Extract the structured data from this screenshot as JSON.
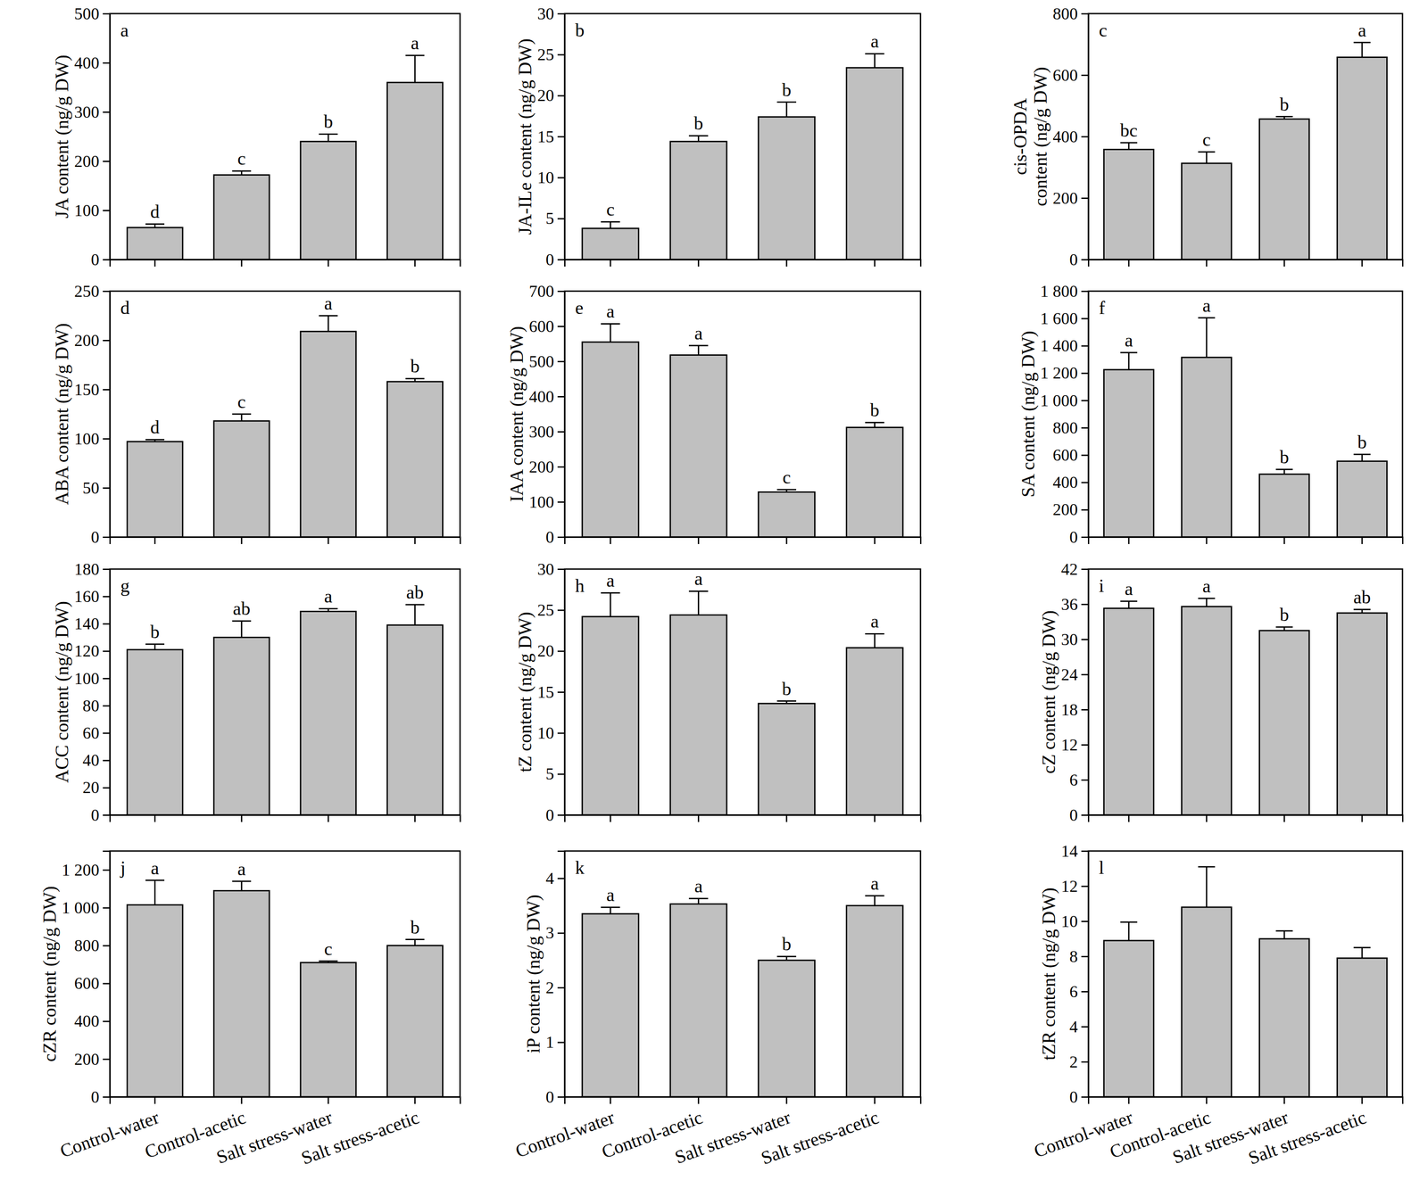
{
  "chart_data": [
    {
      "type": "bar",
      "title": "a",
      "y_label": "JA content (ng/g DW)",
      "categories": [
        "Control-water",
        "Control-acetic",
        "Salt stress-water",
        "Salt stress-acetic"
      ],
      "values": [
        65,
        172,
        240,
        360
      ],
      "errors": [
        7,
        8,
        15,
        55
      ],
      "annotations": [
        "d",
        "c",
        "b",
        "a"
      ],
      "color": "#c0c0c0",
      "ylim": [
        0,
        500
      ],
      "yticks": [
        0,
        100,
        200,
        300,
        400,
        500
      ],
      "tick_labels": "y"
    },
    {
      "type": "bar",
      "title": "b",
      "y_label": "JA-ILe content (ng/g DW)",
      "categories": [
        "Control-water",
        "Control-acetic",
        "Salt stress-water",
        "Salt stress-acetic"
      ],
      "values": [
        3.8,
        14.4,
        17.4,
        23.4
      ],
      "errors": [
        0.8,
        0.7,
        1.8,
        1.7
      ],
      "annotations": [
        "c",
        "b",
        "b",
        "a"
      ],
      "color": "#c0c0c0",
      "ylim": [
        0,
        30
      ],
      "yticks": [
        0,
        5,
        10,
        15,
        20,
        25,
        30
      ],
      "tick_labels": "y"
    },
    {
      "type": "bar",
      "title": "c",
      "y_label": [
        "cis-OPDA",
        "content (ng/g DW)"
      ],
      "categories": [
        "Control-water",
        "Control-acetic",
        "Salt stress-water",
        "Salt stress-acetic"
      ],
      "values": [
        358,
        313,
        457,
        658
      ],
      "errors": [
        22,
        37,
        8,
        48
      ],
      "annotations": [
        "bc",
        "c",
        "b",
        "a"
      ],
      "color": "#c0c0c0",
      "ylim": [
        0,
        800
      ],
      "yticks": [
        0,
        200,
        400,
        600,
        800
      ],
      "tick_labels": "y"
    },
    {
      "type": "bar",
      "title": "d",
      "y_label": "ABA content (ng/g DW)",
      "categories": [
        "Control-water",
        "Control-acetic",
        "Salt stress-water",
        "Salt stress-acetic"
      ],
      "values": [
        97,
        118,
        209,
        158
      ],
      "errors": [
        2,
        7,
        16,
        3
      ],
      "annotations": [
        "d",
        "c",
        "a",
        "b"
      ],
      "color": "#c0c0c0",
      "ylim": [
        0,
        250
      ],
      "yticks": [
        0,
        50,
        100,
        150,
        200,
        250
      ],
      "tick_labels": "y"
    },
    {
      "type": "bar",
      "title": "e",
      "y_label": "IAA content (ng/g DW)",
      "categories": [
        "Control-water",
        "Control-acetic",
        "Salt stress-water",
        "Salt stress-acetic"
      ],
      "values": [
        555,
        518,
        128,
        312
      ],
      "errors": [
        52,
        27,
        7,
        14
      ],
      "annotations": [
        "a",
        "a",
        "c",
        "b"
      ],
      "color": "#c0c0c0",
      "ylim": [
        0,
        700
      ],
      "yticks": [
        0,
        100,
        200,
        300,
        400,
        500,
        600,
        700
      ],
      "tick_labels": "y"
    },
    {
      "type": "bar",
      "title": "f",
      "y_label": "SA content (ng/g DW)",
      "categories": [
        "Control-water",
        "Control-acetic",
        "Salt stress-water",
        "Salt stress-acetic"
      ],
      "values": [
        1225,
        1315,
        460,
        555
      ],
      "errors": [
        125,
        290,
        35,
        50
      ],
      "annotations": [
        "a",
        "a",
        "b",
        "b"
      ],
      "color": "#c0c0c0",
      "ylim": [
        0,
        1800
      ],
      "yticks": [
        0,
        200,
        400,
        600,
        800,
        {
          "value": 1000,
          "label": "1 000"
        },
        {
          "value": 1200,
          "label": "1 200"
        },
        {
          "value": 1400,
          "label": "1 400"
        },
        {
          "value": 1600,
          "label": "1 600"
        },
        {
          "value": 1800,
          "label": "1 800"
        }
      ],
      "tick_labels": "y"
    },
    {
      "type": "bar",
      "title": "g",
      "y_label": "ACC content (ng/g DW)",
      "categories": [
        "Control-water",
        "Control-acetic",
        "Salt stress-water",
        "Salt stress-acetic"
      ],
      "values": [
        121,
        130,
        149,
        139
      ],
      "errors": [
        4,
        12,
        2,
        15
      ],
      "annotations": [
        "b",
        "ab",
        "a",
        "ab"
      ],
      "color": "#c0c0c0",
      "ylim": [
        0,
        180
      ],
      "yticks": [
        0,
        20,
        40,
        60,
        80,
        100,
        120,
        140,
        160,
        180
      ],
      "tick_labels": "y"
    },
    {
      "type": "bar",
      "title": "h",
      "y_label": "tZ content (ng/g DW)",
      "categories": [
        "Control-water",
        "Control-acetic",
        "Salt stress-water",
        "Salt stress-acetic"
      ],
      "values": [
        24.2,
        24.4,
        13.6,
        20.4
      ],
      "errors": [
        2.9,
        2.9,
        0.3,
        1.7
      ],
      "annotations": [
        "a",
        "a",
        "b",
        "a"
      ],
      "color": "#c0c0c0",
      "ylim": [
        0,
        30
      ],
      "yticks": [
        0,
        5,
        10,
        15,
        20,
        25,
        30
      ],
      "tick_labels": "y"
    },
    {
      "type": "bar",
      "title": "i",
      "y_label": "cZ content (ng/g DW)",
      "categories": [
        "Control-water",
        "Control-acetic",
        "Salt stress-water",
        "Salt stress-acetic"
      ],
      "values": [
        35.3,
        35.6,
        31.5,
        34.5
      ],
      "errors": [
        1.2,
        1.4,
        0.6,
        0.6
      ],
      "annotations": [
        "a",
        "a",
        "b",
        "ab"
      ],
      "color": "#c0c0c0",
      "ylim": [
        0,
        42
      ],
      "yticks": [
        0,
        6,
        12,
        18,
        24,
        30,
        36,
        42
      ],
      "tick_labels": "y"
    },
    {
      "type": "bar",
      "title": "j",
      "y_label": "cZR content (ng/g DW)",
      "categories": [
        "Control-water",
        "Control-acetic",
        "Salt stress-water",
        "Salt stress-acetic"
      ],
      "values": [
        1015,
        1090,
        710,
        800
      ],
      "errors": [
        130,
        50,
        8,
        32
      ],
      "annotations": [
        "a",
        "a",
        "c",
        "b"
      ],
      "color": "#c0c0c0",
      "ylim": [
        0,
        1300
      ],
      "yticks": [
        0,
        200,
        400,
        600,
        800,
        {
          "value": 1000,
          "label": "1 000"
        },
        {
          "value": 1200,
          "label": "1 200"
        }
      ]
    },
    {
      "type": "bar",
      "title": "k",
      "y_label": "iP content (ng/g DW)",
      "categories": [
        "Control-water",
        "Control-acetic",
        "Salt stress-water",
        "Salt stress-acetic"
      ],
      "values": [
        3.35,
        3.53,
        2.5,
        3.5
      ],
      "errors": [
        0.12,
        0.1,
        0.07,
        0.18
      ],
      "annotations": [
        "a",
        "a",
        "b",
        "a"
      ],
      "color": "#c0c0c0",
      "ylim": [
        0,
        4.5
      ],
      "yticks": [
        0,
        1,
        2,
        3,
        4
      ]
    },
    {
      "type": "bar",
      "title": "l",
      "y_label": "tZR content (ng/g DW)",
      "categories": [
        "Control-water",
        "Control-acetic",
        "Salt stress-water",
        "Salt stress-acetic"
      ],
      "values": [
        8.9,
        10.8,
        9.0,
        7.9
      ],
      "errors": [
        1.05,
        2.3,
        0.45,
        0.6
      ],
      "color": "#c0c0c0",
      "ylim": [
        0,
        14
      ],
      "yticks": [
        0,
        2,
        4,
        6,
        8,
        10,
        12,
        14
      ]
    }
  ]
}
